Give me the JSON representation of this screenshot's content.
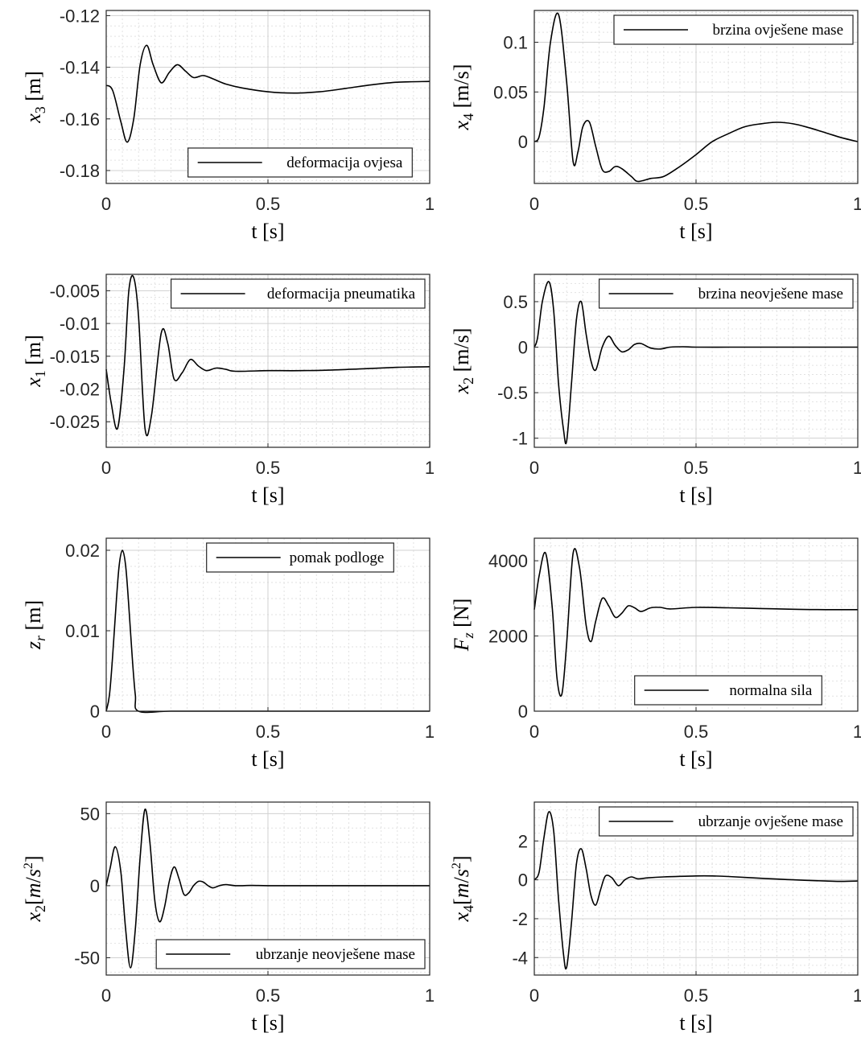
{
  "chart_data": [
    {
      "type": "line",
      "xlabel": "t [s]",
      "ylabel": {
        "sym": "x",
        "sub": "3",
        "sup": "",
        "dot": false,
        "unit": " [m]"
      },
      "xlim": [
        0,
        1
      ],
      "ylim": [
        -0.185,
        -0.118
      ],
      "xticks": [
        "0",
        "0.5",
        "1"
      ],
      "yticks": [
        {
          "v": -0.12,
          "label": "-0.12"
        },
        {
          "v": -0.14,
          "label": "-0.14"
        },
        {
          "v": -0.16,
          "label": "-0.16"
        },
        {
          "v": -0.18,
          "label": "-0.18"
        }
      ],
      "legend": {
        "label": "deformacija ovjesa",
        "position": "bottom-center"
      },
      "grid": true,
      "minor_grid": true,
      "series": [
        {
          "x": [
            0,
            0.02,
            0.045,
            0.065,
            0.085,
            0.105,
            0.125,
            0.145,
            0.17,
            0.195,
            0.22,
            0.245,
            0.27,
            0.3,
            0.33,
            0.37,
            0.42,
            0.5,
            0.58,
            0.66,
            0.74,
            0.82,
            0.9,
            1.0
          ],
          "y": [
            -0.147,
            -0.149,
            -0.161,
            -0.169,
            -0.16,
            -0.139,
            -0.1315,
            -0.139,
            -0.146,
            -0.142,
            -0.139,
            -0.1415,
            -0.144,
            -0.1432,
            -0.1445,
            -0.1465,
            -0.148,
            -0.1495,
            -0.15,
            -0.1495,
            -0.1482,
            -0.1468,
            -0.1458,
            -0.1455
          ]
        }
      ]
    },
    {
      "type": "line",
      "xlabel": "t [s]",
      "ylabel": {
        "sym": "x",
        "sub": "4",
        "sup": "",
        "dot": false,
        "unit": " [m/s]"
      },
      "xlim": [
        0,
        1
      ],
      "ylim": [
        -0.042,
        0.132
      ],
      "xticks": [
        "0",
        "0.5",
        "1"
      ],
      "yticks": [
        {
          "v": 0.1,
          "label": "0.1"
        },
        {
          "v": 0.05,
          "label": "0.05"
        },
        {
          "v": 0,
          "label": "0"
        }
      ],
      "legend": {
        "label": "brzina ovješene mase",
        "position": "top-right"
      },
      "grid": true,
      "minor_grid": true,
      "series": [
        {
          "x": [
            0,
            0.015,
            0.03,
            0.05,
            0.075,
            0.1,
            0.12,
            0.135,
            0.15,
            0.17,
            0.19,
            0.21,
            0.23,
            0.25,
            0.27,
            0.3,
            0.32,
            0.36,
            0.4,
            0.45,
            0.5,
            0.55,
            0.6,
            0.65,
            0.7,
            0.75,
            0.8,
            0.85,
            0.9,
            0.95,
            1.0
          ],
          "y": [
            0.0,
            0.005,
            0.035,
            0.1,
            0.128,
            0.06,
            -0.02,
            -0.01,
            0.015,
            0.02,
            -0.005,
            -0.028,
            -0.03,
            -0.025,
            -0.027,
            -0.035,
            -0.04,
            -0.037,
            -0.035,
            -0.025,
            -0.013,
            0.0,
            0.008,
            0.015,
            0.018,
            0.0195,
            0.018,
            0.014,
            0.009,
            0.004,
            0.0
          ]
        }
      ]
    },
    {
      "type": "line",
      "xlabel": "t [s]",
      "ylabel": {
        "sym": "x",
        "sub": "1",
        "sup": "",
        "dot": false,
        "unit": " [m]"
      },
      "xlim": [
        0,
        1
      ],
      "ylim": [
        -0.0289,
        -0.0025
      ],
      "xticks": [
        "0",
        "0.5",
        "1"
      ],
      "yticks": [
        {
          "v": -0.005,
          "label": "-0.005"
        },
        {
          "v": -0.01,
          "label": "-0.01"
        },
        {
          "v": -0.015,
          "label": "-0.015"
        },
        {
          "v": -0.02,
          "label": "-0.02"
        },
        {
          "v": -0.025,
          "label": "-0.025"
        }
      ],
      "legend": {
        "label": "deformacija pneumatika",
        "position": "top-right"
      },
      "grid": true,
      "minor_grid": true,
      "series": [
        {
          "x": [
            0,
            0.015,
            0.035,
            0.055,
            0.07,
            0.085,
            0.1,
            0.12,
            0.14,
            0.17,
            0.19,
            0.21,
            0.235,
            0.26,
            0.285,
            0.31,
            0.34,
            0.37,
            0.4,
            0.5,
            0.6,
            0.7,
            0.8,
            0.9,
            1.0
          ],
          "y": [
            -0.017,
            -0.022,
            -0.026,
            -0.017,
            -0.005,
            -0.003,
            -0.009,
            -0.026,
            -0.024,
            -0.0115,
            -0.013,
            -0.0185,
            -0.0175,
            -0.0155,
            -0.0165,
            -0.0172,
            -0.0168,
            -0.017,
            -0.0173,
            -0.0172,
            -0.0172,
            -0.0171,
            -0.0169,
            -0.0167,
            -0.0166
          ]
        }
      ]
    },
    {
      "type": "line",
      "xlabel": "t [s]",
      "ylabel": {
        "sym": "x",
        "sub": "2",
        "sup": "",
        "dot": false,
        "unit": " [m/s]"
      },
      "xlim": [
        0,
        1
      ],
      "ylim": [
        -1.1,
        0.8
      ],
      "xticks": [
        "0",
        "0.5",
        "1"
      ],
      "yticks": [
        {
          "v": 0.5,
          "label": "0.5"
        },
        {
          "v": 0,
          "label": "0"
        },
        {
          "v": -0.5,
          "label": "-0.5"
        },
        {
          "v": -1,
          "label": "-1"
        }
      ],
      "legend": {
        "label": "brzina neovješene mase",
        "position": "top-right"
      },
      "grid": true,
      "minor_grid": true,
      "series": [
        {
          "x": [
            0,
            0.01,
            0.025,
            0.045,
            0.06,
            0.075,
            0.09,
            0.1,
            0.115,
            0.13,
            0.145,
            0.16,
            0.175,
            0.19,
            0.21,
            0.23,
            0.25,
            0.27,
            0.29,
            0.31,
            0.33,
            0.36,
            0.39,
            0.42,
            0.46,
            0.5,
            0.6,
            0.7,
            0.8,
            0.9,
            1.0
          ],
          "y": [
            0.0,
            0.1,
            0.5,
            0.72,
            0.4,
            -0.4,
            -0.9,
            -1.03,
            -0.4,
            0.3,
            0.5,
            0.15,
            -0.15,
            -0.25,
            0.0,
            0.12,
            0.02,
            -0.05,
            -0.03,
            0.03,
            0.04,
            -0.01,
            -0.02,
            0.0,
            0.005,
            0.0,
            0.0,
            0.0,
            0.0,
            0.0,
            0.0
          ]
        }
      ]
    },
    {
      "type": "line",
      "xlabel": "t [s]",
      "ylabel": {
        "sym": "z",
        "sub": "r",
        "sup": "",
        "dot": false,
        "unit": " [m]"
      },
      "xlim": [
        0,
        1
      ],
      "ylim": [
        0,
        0.0215
      ],
      "xticks": [
        "0",
        "0.5",
        "1"
      ],
      "yticks": [
        {
          "v": 0.02,
          "label": "0.02"
        },
        {
          "v": 0.01,
          "label": "0.01"
        },
        {
          "v": 0,
          "label": "0"
        }
      ],
      "legend": {
        "label": "pomak podloge",
        "position": "top-center"
      },
      "grid": true,
      "minor_grid": true,
      "series": [
        {
          "x": [
            0,
            0.01,
            0.02,
            0.03,
            0.04,
            0.05,
            0.06,
            0.07,
            0.08,
            0.09,
            0.1,
            0.2,
            0.4,
            0.6,
            0.8,
            1.0
          ],
          "y": [
            0.0,
            0.002,
            0.0069,
            0.013,
            0.0181,
            0.02,
            0.0181,
            0.013,
            0.0069,
            0.002,
            0.0,
            0.0,
            0.0,
            0.0,
            0.0,
            0.0
          ]
        }
      ]
    },
    {
      "type": "line",
      "xlabel": "t [s]",
      "ylabel": {
        "sym": "F",
        "sub": "z",
        "sup": "",
        "dot": false,
        "unit": " [N]"
      },
      "xlim": [
        0,
        1
      ],
      "ylim": [
        0,
        4600
      ],
      "xticks": [
        "0",
        "0.5",
        "1"
      ],
      "yticks": [
        {
          "v": 4000,
          "label": "4000"
        },
        {
          "v": 2000,
          "label": "2000"
        },
        {
          "v": 0,
          "label": "0"
        }
      ],
      "legend": {
        "label": "normalna sila",
        "position": "bottom-center"
      },
      "grid": true,
      "minor_grid": true,
      "series": [
        {
          "x": [
            0,
            0.015,
            0.035,
            0.055,
            0.07,
            0.085,
            0.1,
            0.12,
            0.14,
            0.16,
            0.175,
            0.19,
            0.21,
            0.23,
            0.25,
            0.27,
            0.29,
            0.31,
            0.33,
            0.36,
            0.39,
            0.42,
            0.5,
            0.6,
            0.7,
            0.8,
            0.9,
            1.0
          ],
          "y": [
            2700,
            3600,
            4200,
            2800,
            900,
            450,
            1800,
            4200,
            3800,
            2300,
            1850,
            2400,
            3000,
            2800,
            2500,
            2600,
            2800,
            2750,
            2650,
            2750,
            2760,
            2720,
            2760,
            2750,
            2730,
            2710,
            2700,
            2700
          ]
        }
      ]
    },
    {
      "type": "line",
      "xlabel": "t [s]",
      "ylabel": {
        "sym": "x",
        "sub": "2",
        "sup": "2",
        "dot": true,
        "unit": ""
      },
      "xlim": [
        0,
        1
      ],
      "ylim": [
        -62,
        58
      ],
      "xticks": [
        "0",
        "0.5",
        "1"
      ],
      "yticks": [
        {
          "v": 50,
          "label": "50"
        },
        {
          "v": 0,
          "label": "0"
        },
        {
          "v": -50,
          "label": "-50"
        }
      ],
      "legend": {
        "label": "ubrzanje neovješene mase",
        "position": "bottom-right"
      },
      "grid": true,
      "minor_grid": true,
      "series": [
        {
          "x": [
            0,
            0.012,
            0.028,
            0.045,
            0.06,
            0.075,
            0.09,
            0.105,
            0.12,
            0.135,
            0.15,
            0.165,
            0.18,
            0.195,
            0.21,
            0.225,
            0.24,
            0.255,
            0.27,
            0.285,
            0.3,
            0.315,
            0.33,
            0.35,
            0.37,
            0.4,
            0.45,
            0.5,
            0.6,
            0.8,
            1.0
          ],
          "y": [
            0,
            12,
            27,
            10,
            -30,
            -57,
            -30,
            20,
            53,
            30,
            -10,
            -25,
            -15,
            3,
            13,
            5,
            -6,
            -5,
            0,
            3,
            2.5,
            0,
            -1.5,
            0,
            0.8,
            0,
            0.2,
            0,
            0,
            0,
            0
          ]
        }
      ]
    },
    {
      "type": "line",
      "xlabel": "t [s]",
      "ylabel": {
        "sym": "x",
        "sub": "4",
        "sup": "2",
        "dot": true,
        "unit": ""
      },
      "xlim": [
        0,
        1
      ],
      "ylim": [
        -4.9,
        4.0
      ],
      "xticks": [
        "0",
        "0.5",
        "1"
      ],
      "yticks": [
        {
          "v": 2,
          "label": "2"
        },
        {
          "v": 0,
          "label": "0"
        },
        {
          "v": -2,
          "label": "-2"
        },
        {
          "v": -4,
          "label": "-4"
        }
      ],
      "legend": {
        "label": "ubrzanje ovješene mase",
        "position": "top-right"
      },
      "grid": true,
      "minor_grid": true,
      "series": [
        {
          "x": [
            0,
            0.015,
            0.03,
            0.045,
            0.06,
            0.075,
            0.09,
            0.1,
            0.115,
            0.13,
            0.145,
            0.16,
            0.175,
            0.19,
            0.205,
            0.22,
            0.24,
            0.26,
            0.28,
            0.3,
            0.32,
            0.35,
            0.4,
            0.45,
            0.5,
            0.55,
            0.6,
            0.7,
            0.8,
            0.9,
            0.95,
            1.0
          ],
          "y": [
            0.0,
            0.4,
            2.2,
            3.5,
            2.5,
            -1.0,
            -3.8,
            -4.5,
            -2.2,
            0.8,
            1.6,
            0.6,
            -0.8,
            -1.3,
            -0.5,
            0.2,
            0.1,
            -0.3,
            0.0,
            0.15,
            0.05,
            0.1,
            0.15,
            0.18,
            0.2,
            0.2,
            0.17,
            0.08,
            0.0,
            -0.06,
            -0.08,
            -0.06
          ]
        }
      ]
    }
  ]
}
